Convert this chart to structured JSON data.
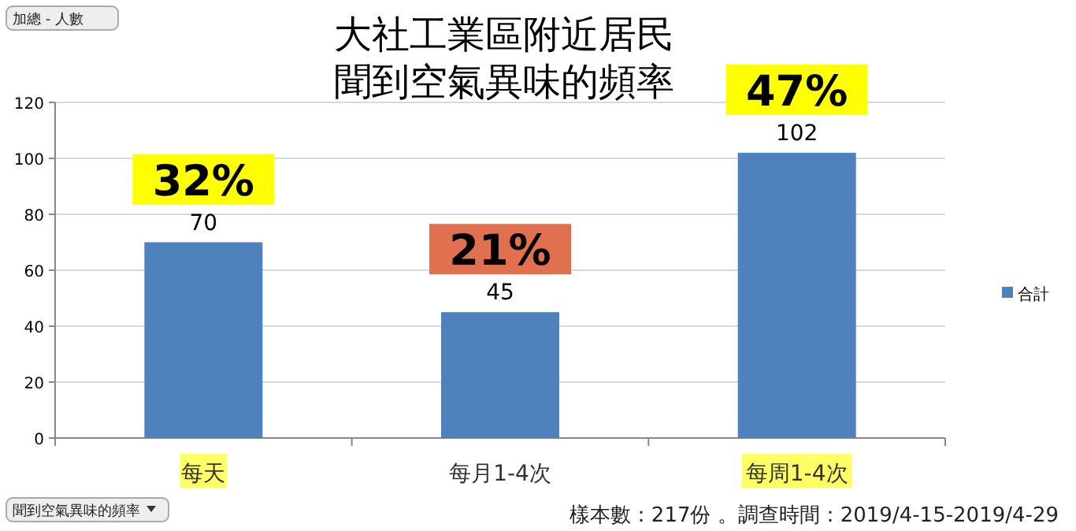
{
  "chart_data": {
    "type": "bar",
    "title": "大社工業區附近居民聞到空氣異味的頻率",
    "categories": [
      "每天",
      "每月1-4次",
      "每周1-4次"
    ],
    "series": [
      {
        "name": "合計",
        "color": "#4f81bd",
        "values": [
          70,
          45,
          102
        ]
      }
    ],
    "ylim": [
      0,
      120
    ],
    "yticks": [
      0,
      20,
      40,
      60,
      80,
      100,
      120
    ],
    "grid": "y",
    "legend": "right",
    "data_labels": true,
    "annotations": [
      "32%",
      "21%",
      "47%",
      "加總 - 人數",
      "聞到空氣異味的頻率",
      "樣本數：217份 。調查時間：2019/4-15-2019/4-29"
    ]
  }
}
